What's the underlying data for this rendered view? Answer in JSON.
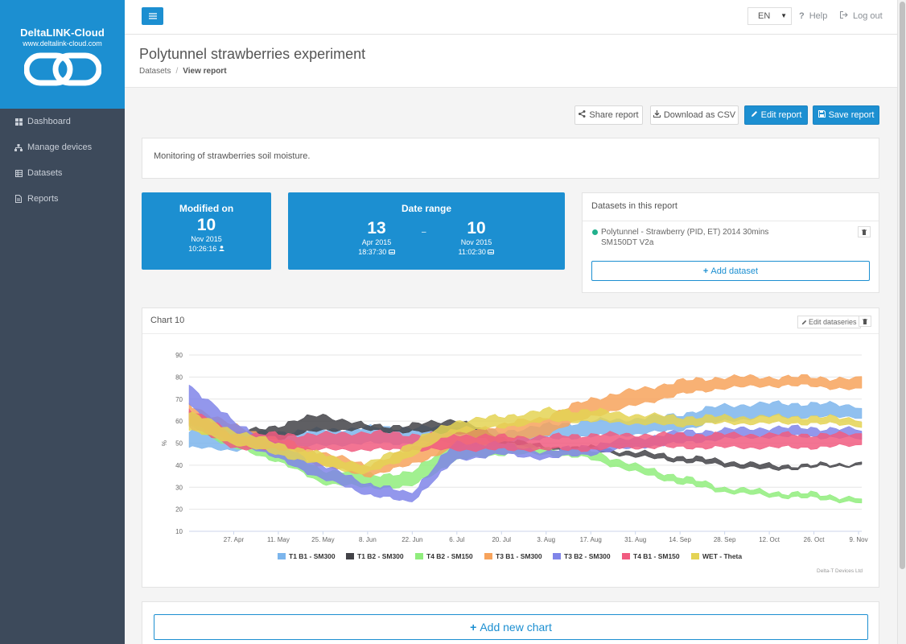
{
  "app": {
    "brand_name": "DeltaLINK-Cloud",
    "brand_url": "www.deltalink-cloud.com"
  },
  "sidebar": {
    "items": [
      {
        "label": "Dashboard",
        "icon": "grid-icon"
      },
      {
        "label": "Manage devices",
        "icon": "sitemap-icon"
      },
      {
        "label": "Datasets",
        "icon": "table-icon"
      },
      {
        "label": "Reports",
        "icon": "file-icon"
      }
    ]
  },
  "topbar": {
    "language": "EN",
    "help_label": "Help",
    "logout_label": "Log out"
  },
  "header": {
    "title": "Polytunnel strawberries experiment",
    "breadcrumb": {
      "parent": "Datasets",
      "separator": "/",
      "current": "View report"
    }
  },
  "actions": {
    "share": "Share report",
    "download": "Download as CSV",
    "edit": "Edit report",
    "save": "Save report"
  },
  "description": "Monitoring of strawberries soil moisture.",
  "modified": {
    "label": "Modified on",
    "day": "10",
    "month_year": "Nov 2015",
    "time": "10:26:16"
  },
  "date_range": {
    "label": "Date range",
    "start": {
      "day": "13",
      "month_year": "Apr 2015",
      "time": "18:37:30"
    },
    "separator": "–",
    "end": {
      "day": "10",
      "month_year": "Nov 2015",
      "time": "11:02:30"
    }
  },
  "datasets_panel": {
    "title": "Datasets in this report",
    "items": [
      {
        "name": "Polytunnel - Strawberry (PID, ET) 2014 30mins SM150DT V2a",
        "status_color": "#21b08c"
      }
    ],
    "add_label": "Add dataset"
  },
  "chart": {
    "title": "Chart 10",
    "edit_label": "Edit dataseries",
    "credit": "Delta-T Devices Ltd"
  },
  "chart_data": {
    "type": "area",
    "title": "",
    "xlabel": "",
    "ylabel": "%",
    "ylim": [
      10,
      90
    ],
    "yticks": [
      10,
      20,
      30,
      40,
      50,
      60,
      70,
      80,
      90
    ],
    "x_ticks": [
      "27. Apr",
      "11. May",
      "25. May",
      "8. Jun",
      "22. Jun",
      "6. Jul",
      "20. Jul",
      "3. Aug",
      "17. Aug",
      "31. Aug",
      "14. Sep",
      "28. Sep",
      "12. Oct",
      "26. Oct",
      "9. Nov"
    ],
    "x_tick_dates": [
      "2015-04-27",
      "2015-05-11",
      "2015-05-25",
      "2015-06-08",
      "2015-06-22",
      "2015-07-06",
      "2015-07-20",
      "2015-08-03",
      "2015-08-17",
      "2015-08-31",
      "2015-09-14",
      "2015-09-28",
      "2015-10-12",
      "2015-10-26",
      "2015-11-09"
    ],
    "x_range": [
      "2015-04-13",
      "2015-11-10"
    ],
    "grid": true,
    "legend_position": "bottom",
    "series": [
      {
        "name": "T1 B1 - SM300",
        "color": "#7cb5ec",
        "x": [
          "2015-04-13",
          "2015-04-27",
          "2015-05-11",
          "2015-05-25",
          "2015-06-08",
          "2015-06-22",
          "2015-07-06",
          "2015-07-20",
          "2015-08-03",
          "2015-08-17",
          "2015-08-31",
          "2015-09-14",
          "2015-09-28",
          "2015-10-12",
          "2015-10-26",
          "2015-11-10"
        ],
        "low": [
          48,
          47,
          48,
          49,
          50,
          50,
          51,
          49,
          52,
          53,
          54,
          56,
          60,
          62,
          62,
          62
        ],
        "high": [
          55,
          54,
          55,
          56,
          57,
          57,
          57,
          55,
          58,
          60,
          61,
          63,
          67,
          68,
          68,
          67
        ]
      },
      {
        "name": "T1 B2 - SM300",
        "color": "#434348",
        "x": [
          "2015-04-13",
          "2015-04-27",
          "2015-05-11",
          "2015-05-25",
          "2015-06-08",
          "2015-06-22",
          "2015-07-06",
          "2015-07-20",
          "2015-08-03",
          "2015-08-17",
          "2015-08-31",
          "2015-09-14",
          "2015-09-28",
          "2015-10-12",
          "2015-10-26",
          "2015-11-10"
        ],
        "low": [
          60,
          52,
          52,
          56,
          56,
          55,
          55,
          50,
          47,
          47,
          44,
          42,
          40,
          38,
          39,
          40
        ],
        "high": [
          64,
          54,
          58,
          63,
          58,
          58,
          61,
          53,
          48,
          48,
          46,
          44,
          42,
          40,
          40,
          41
        ]
      },
      {
        "name": "T4 B2 - SM150",
        "color": "#90ed7d",
        "x": [
          "2015-04-13",
          "2015-04-27",
          "2015-05-11",
          "2015-05-25",
          "2015-06-08",
          "2015-06-22",
          "2015-07-06",
          "2015-07-20",
          "2015-08-03",
          "2015-08-17",
          "2015-08-31",
          "2015-09-14",
          "2015-09-28",
          "2015-10-12",
          "2015-10-26",
          "2015-11-10"
        ],
        "low": [
          58,
          48,
          42,
          32,
          30,
          30,
          42,
          45,
          45,
          43,
          37,
          32,
          28,
          26,
          25,
          23
        ],
        "high": [
          64,
          54,
          48,
          38,
          36,
          36,
          52,
          50,
          48,
          47,
          40,
          35,
          30,
          28,
          27,
          25
        ]
      },
      {
        "name": "T3 B1 - SM300",
        "color": "#f7a35c",
        "x": [
          "2015-04-13",
          "2015-04-27",
          "2015-05-11",
          "2015-05-25",
          "2015-06-08",
          "2015-06-22",
          "2015-07-06",
          "2015-07-20",
          "2015-08-03",
          "2015-08-17",
          "2015-08-31",
          "2015-09-14",
          "2015-09-28",
          "2015-10-12",
          "2015-10-26",
          "2015-11-10"
        ],
        "low": [
          60,
          50,
          46,
          40,
          35,
          40,
          48,
          50,
          54,
          62,
          67,
          72,
          75,
          76,
          76,
          74
        ],
        "high": [
          68,
          58,
          52,
          46,
          40,
          47,
          56,
          58,
          62,
          70,
          74,
          78,
          80,
          80,
          80,
          79
        ]
      },
      {
        "name": "T3 B2 - SM300",
        "color": "#8085e9",
        "x": [
          "2015-04-13",
          "2015-04-27",
          "2015-05-11",
          "2015-05-25",
          "2015-06-08",
          "2015-06-22",
          "2015-07-06",
          "2015-07-20",
          "2015-08-03",
          "2015-08-17",
          "2015-08-31",
          "2015-09-14",
          "2015-09-28",
          "2015-10-12",
          "2015-10-26",
          "2015-11-10"
        ],
        "low": [
          68,
          52,
          43,
          34,
          27,
          23,
          42,
          45,
          43,
          45,
          48,
          50,
          52,
          53,
          53,
          52
        ],
        "high": [
          77,
          60,
          50,
          40,
          32,
          27,
          50,
          50,
          46,
          49,
          52,
          55,
          56,
          57,
          57,
          56
        ]
      },
      {
        "name": "T4 B1 - SM150",
        "color": "#f15c80",
        "x": [
          "2015-04-13",
          "2015-04-27",
          "2015-05-11",
          "2015-05-25",
          "2015-06-08",
          "2015-06-22",
          "2015-07-06",
          "2015-07-20",
          "2015-08-03",
          "2015-08-17",
          "2015-08-31",
          "2015-09-14",
          "2015-09-28",
          "2015-10-12",
          "2015-10-26",
          "2015-11-10"
        ],
        "low": [
          58,
          48,
          47,
          47,
          47,
          47,
          47,
          47,
          47,
          47,
          48,
          48,
          48,
          48,
          48,
          49
        ],
        "high": [
          66,
          54,
          54,
          54,
          55,
          54,
          54,
          53,
          53,
          54,
          54,
          54,
          54,
          54,
          54,
          54
        ]
      },
      {
        "name": "WET - Theta",
        "color": "#e4d354",
        "x": [
          "2015-04-13",
          "2015-04-27",
          "2015-05-11",
          "2015-05-25",
          "2015-06-08",
          "2015-06-22",
          "2015-07-06",
          "2015-07-20",
          "2015-08-03",
          "2015-08-17",
          "2015-08-31",
          "2015-09-14",
          "2015-09-28",
          "2015-10-12",
          "2015-10-26",
          "2015-11-10"
        ],
        "low": [
          56,
          50,
          45,
          40,
          36,
          44,
          55,
          57,
          60,
          60,
          59,
          58,
          59,
          59,
          59,
          58
        ],
        "high": [
          64,
          56,
          50,
          45,
          40,
          50,
          60,
          62,
          65,
          65,
          63,
          62,
          62,
          62,
          62,
          61
        ]
      }
    ]
  }
}
